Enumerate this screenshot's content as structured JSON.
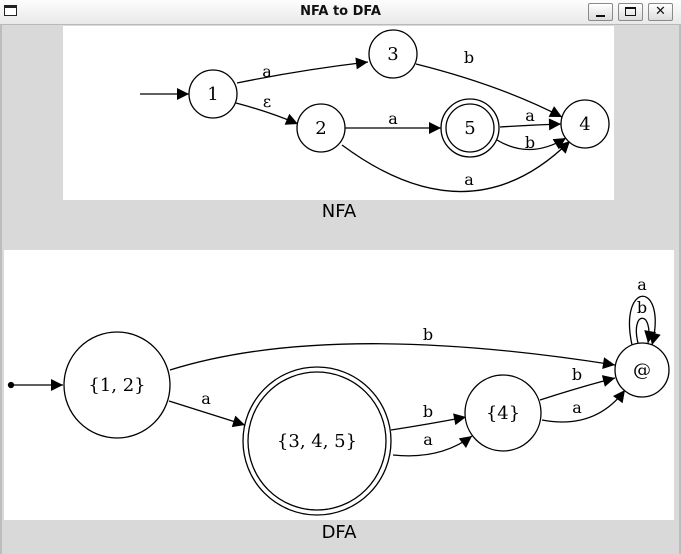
{
  "window": {
    "title": "NFA to DFA"
  },
  "nfa": {
    "caption": "NFA",
    "states": [
      "1",
      "2",
      "3",
      "4",
      "5"
    ],
    "accepting": [
      "5"
    ],
    "start": "1",
    "edge_labels": {
      "e1_3": "a",
      "e1_2": "ε",
      "e3_4": "b",
      "e2_5": "a",
      "e5_4a": "a",
      "e5_4b": "b",
      "e2_4": "a"
    }
  },
  "dfa": {
    "caption": "DFA",
    "states": [
      "{1, 2}",
      "{3, 4, 5}",
      "{4}",
      "@"
    ],
    "accepting": [
      "{3, 4, 5}"
    ],
    "start": "{1, 2}",
    "edge_labels": {
      "d12_at": "b",
      "d12_345": "a",
      "d345_4b": "b",
      "d345_4a": "a",
      "d4_at_b": "b",
      "d4_at_a": "a",
      "dat_loop_a": "a",
      "dat_loop_b": "b"
    }
  }
}
